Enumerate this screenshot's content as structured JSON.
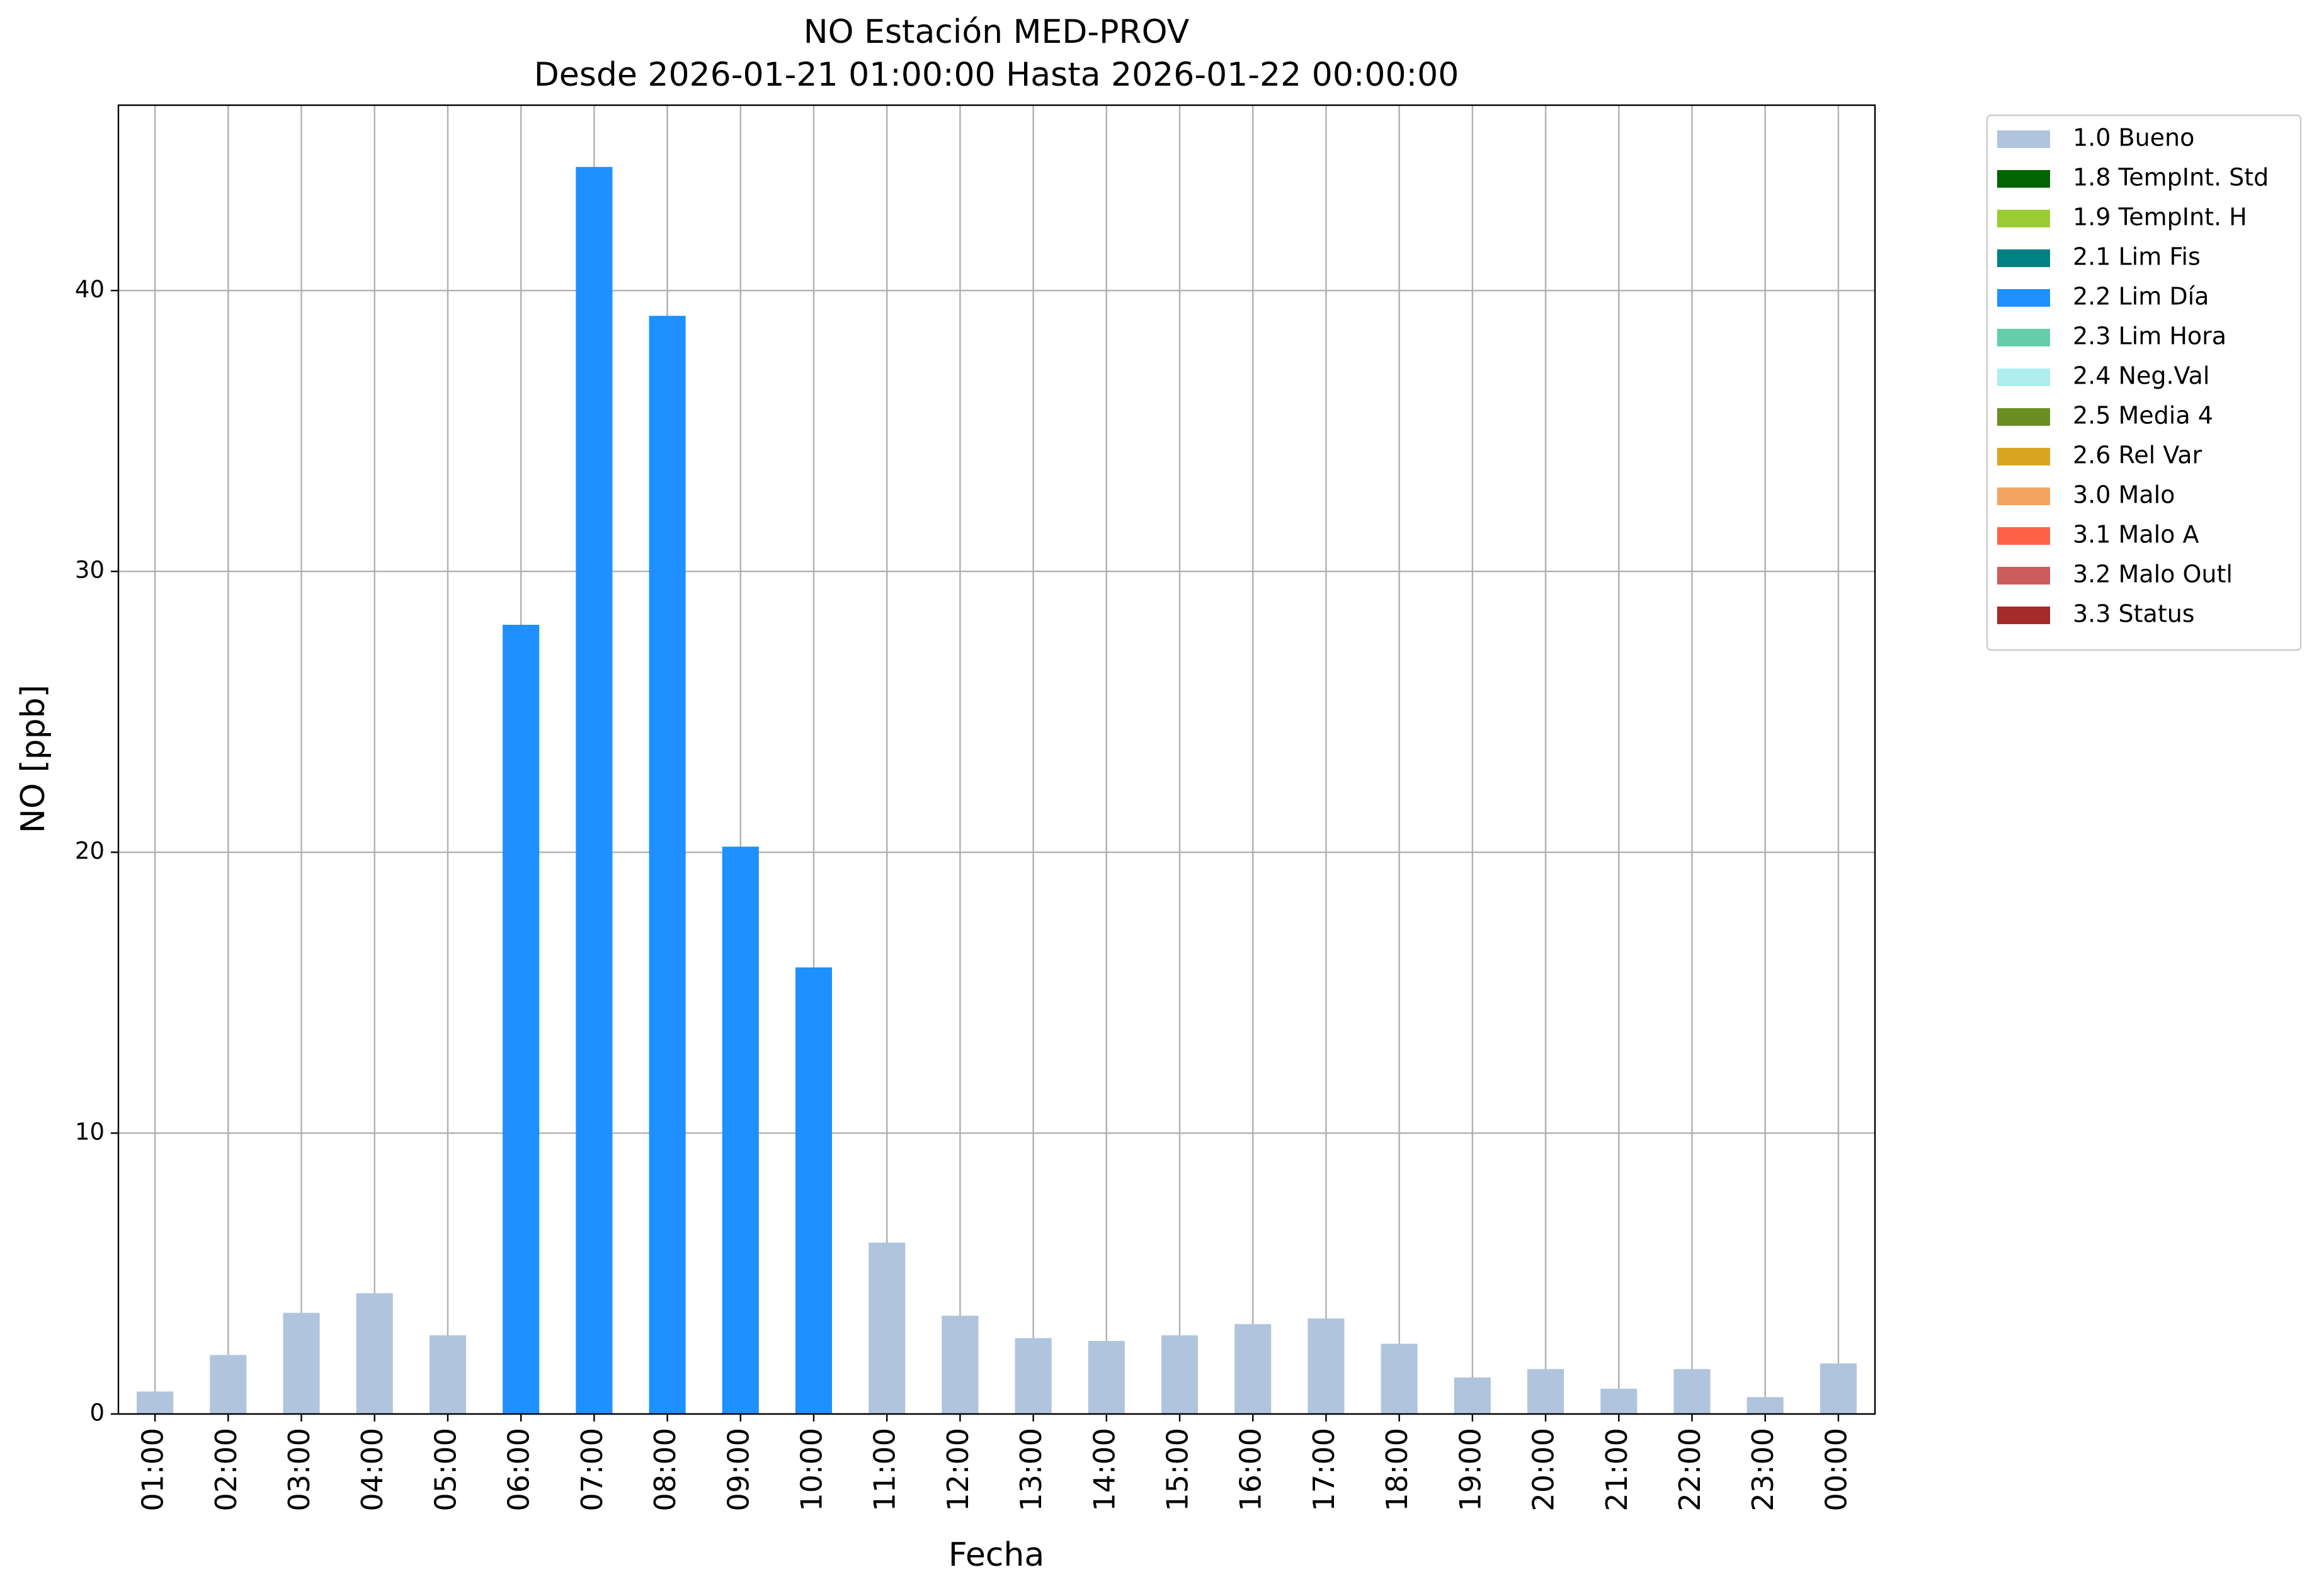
{
  "chart_data": {
    "type": "bar",
    "title": "NO Estación MED-PROV",
    "subtitle": "Desde 2026-01-21 01:00:00 Hasta 2026-01-22 00:00:00",
    "x_label": "Fecha",
    "y_label": "NO [ppb]",
    "categories": [
      "01:00",
      "02:00",
      "03:00",
      "04:00",
      "05:00",
      "06:00",
      "07:00",
      "08:00",
      "09:00",
      "10:00",
      "11:00",
      "12:00",
      "13:00",
      "14:00",
      "15:00",
      "16:00",
      "17:00",
      "18:00",
      "19:00",
      "20:00",
      "21:00",
      "22:00",
      "23:00",
      "00:00"
    ],
    "series": [
      {
        "name": "1.0 Bueno",
        "color": "#b0c4de",
        "values": [
          0.8,
          2.1,
          3.6,
          4.3,
          2.8,
          null,
          null,
          null,
          null,
          null,
          6.1,
          3.5,
          2.7,
          2.6,
          2.8,
          3.2,
          3.4,
          2.5,
          1.3,
          1.6,
          0.9,
          1.6,
          0.6,
          1.8
        ]
      },
      {
        "name": "1.8 TempInt. Std",
        "color": "#006400",
        "values": [
          null,
          null,
          null,
          null,
          null,
          null,
          null,
          null,
          null,
          null,
          null,
          null,
          null,
          null,
          null,
          null,
          null,
          null,
          null,
          null,
          null,
          null,
          null,
          null
        ]
      },
      {
        "name": "1.9 TempInt. H",
        "color": "#9acd32",
        "values": [
          null,
          null,
          null,
          null,
          null,
          null,
          null,
          null,
          null,
          null,
          null,
          null,
          null,
          null,
          null,
          null,
          null,
          null,
          null,
          null,
          null,
          null,
          null,
          null
        ]
      },
      {
        "name": "2.1 Lim Fis",
        "color": "#008080",
        "values": [
          null,
          null,
          null,
          null,
          null,
          null,
          null,
          null,
          null,
          null,
          null,
          null,
          null,
          null,
          null,
          null,
          null,
          null,
          null,
          null,
          null,
          null,
          null,
          null
        ]
      },
      {
        "name": "2.2 Lim Día",
        "color": "#1e90ff",
        "values": [
          null,
          null,
          null,
          null,
          null,
          28.1,
          44.4,
          39.1,
          20.2,
          15.9,
          null,
          null,
          null,
          null,
          null,
          null,
          null,
          null,
          null,
          null,
          null,
          null,
          null,
          null
        ]
      },
      {
        "name": "2.3 Lim Hora",
        "color": "#66cdaa",
        "values": [
          null,
          null,
          null,
          null,
          null,
          null,
          null,
          null,
          null,
          null,
          null,
          null,
          null,
          null,
          null,
          null,
          null,
          null,
          null,
          null,
          null,
          null,
          null,
          null
        ]
      },
      {
        "name": "2.4 Neg.Val",
        "color": "#afeeee",
        "values": [
          null,
          null,
          null,
          null,
          null,
          null,
          null,
          null,
          null,
          null,
          null,
          null,
          null,
          null,
          null,
          null,
          null,
          null,
          null,
          null,
          null,
          null,
          null,
          null
        ]
      },
      {
        "name": "2.5 Media 4",
        "color": "#6b8e23",
        "values": [
          null,
          null,
          null,
          null,
          null,
          null,
          null,
          null,
          null,
          null,
          null,
          null,
          null,
          null,
          null,
          null,
          null,
          null,
          null,
          null,
          null,
          null,
          null,
          null
        ]
      },
      {
        "name": "2.6 Rel Var",
        "color": "#daa520",
        "values": [
          null,
          null,
          null,
          null,
          null,
          null,
          null,
          null,
          null,
          null,
          null,
          null,
          null,
          null,
          null,
          null,
          null,
          null,
          null,
          null,
          null,
          null,
          null,
          null
        ]
      },
      {
        "name": "3.0 Malo",
        "color": "#f4a460",
        "values": [
          null,
          null,
          null,
          null,
          null,
          null,
          null,
          null,
          null,
          null,
          null,
          null,
          null,
          null,
          null,
          null,
          null,
          null,
          null,
          null,
          null,
          null,
          null,
          null
        ]
      },
      {
        "name": "3.1 Malo A",
        "color": "#ff6347",
        "values": [
          null,
          null,
          null,
          null,
          null,
          null,
          null,
          null,
          null,
          null,
          null,
          null,
          null,
          null,
          null,
          null,
          null,
          null,
          null,
          null,
          null,
          null,
          null,
          null
        ]
      },
      {
        "name": "3.2 Malo Outl",
        "color": "#cd5c5c",
        "values": [
          null,
          null,
          null,
          null,
          null,
          null,
          null,
          null,
          null,
          null,
          null,
          null,
          null,
          null,
          null,
          null,
          null,
          null,
          null,
          null,
          null,
          null,
          null,
          null
        ]
      },
      {
        "name": "3.3 Status",
        "color": "#a52a2a",
        "values": [
          null,
          null,
          null,
          null,
          null,
          null,
          null,
          null,
          null,
          null,
          null,
          null,
          null,
          null,
          null,
          null,
          null,
          null,
          null,
          null,
          null,
          null,
          null,
          null
        ]
      }
    ],
    "stacked": true,
    "ylim": [
      0,
      46.6
    ],
    "yticks": [
      0,
      10,
      20,
      30,
      40
    ],
    "grid": true,
    "legend": "outside-right"
  }
}
